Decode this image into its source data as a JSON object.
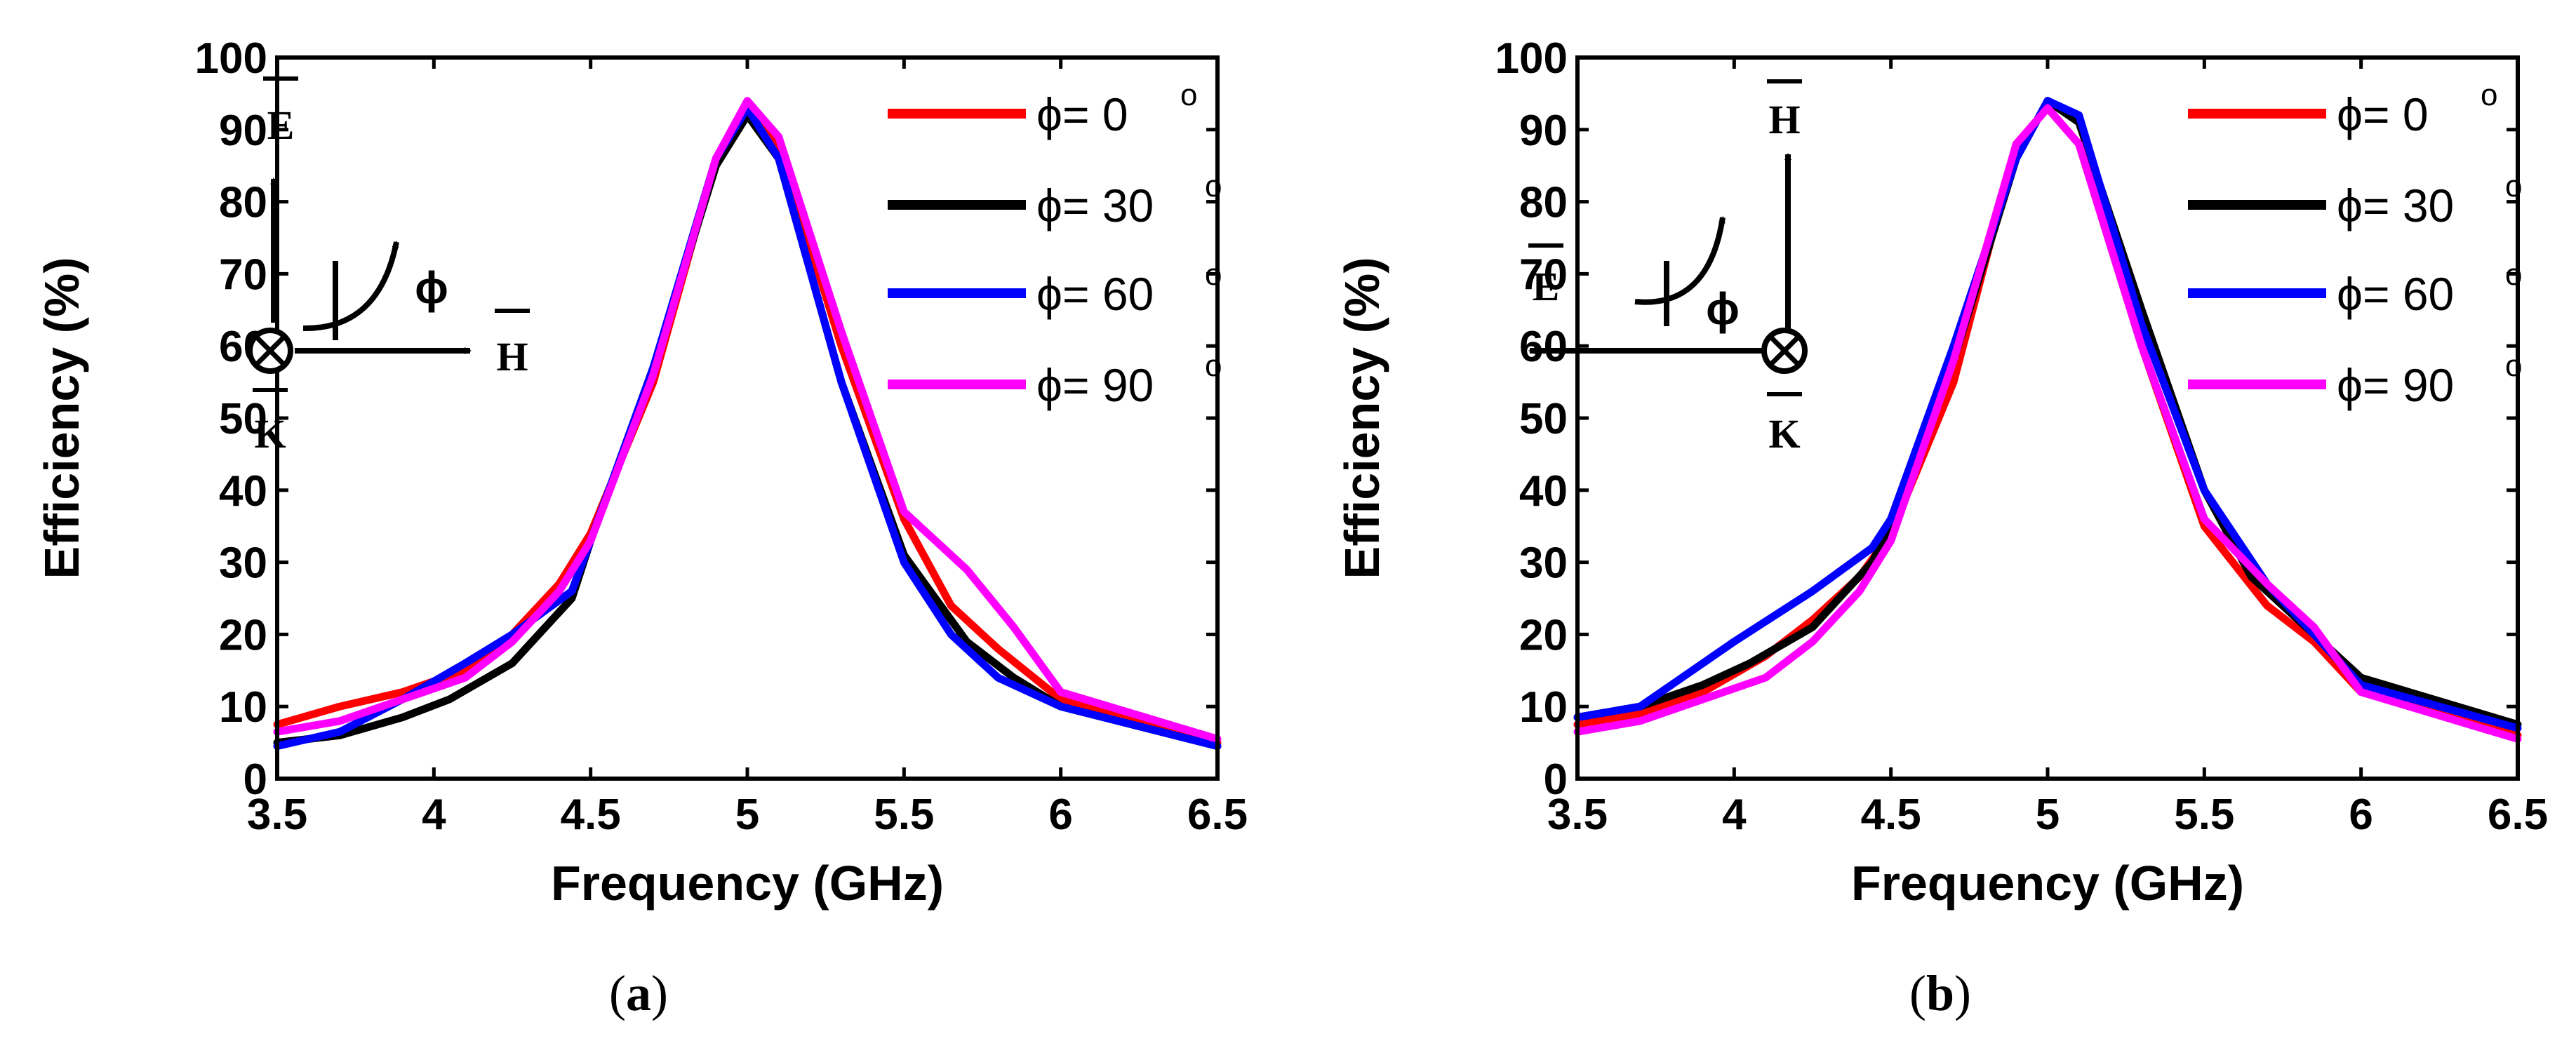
{
  "chart_data": [
    {
      "type": "line",
      "panel_label": "a",
      "xlabel": "Frequency (GHz)",
      "ylabel": "Efficiency (%)",
      "xlim": [
        3.5,
        6.5
      ],
      "ylim": [
        0,
        100
      ],
      "xticks": [
        "3.5",
        "4",
        "4.5",
        "5",
        "5.5",
        "6",
        "6.5"
      ],
      "yticks": [
        "0",
        "10",
        "20",
        "30",
        "40",
        "50",
        "60",
        "70",
        "80",
        "90",
        "100"
      ],
      "legend_position": "top-right",
      "series": [
        {
          "name": "ϕ= 0",
          "color": "#ff0000",
          "x": [
            3.5,
            3.7,
            3.9,
            4.1,
            4.25,
            4.4,
            4.5,
            4.7,
            4.9,
            5.0,
            5.1,
            5.3,
            5.5,
            5.65,
            5.8,
            6.0,
            6.5
          ],
          "y": [
            7.5,
            10,
            12,
            15,
            20,
            27,
            34,
            55,
            86,
            93,
            88,
            60,
            36,
            24,
            18,
            11,
            5
          ]
        },
        {
          "name": "ϕ= 30",
          "color": "#000000",
          "x": [
            3.5,
            3.7,
            3.9,
            4.05,
            4.25,
            4.44,
            4.5,
            4.7,
            4.9,
            5.0,
            5.1,
            5.3,
            5.5,
            5.7,
            5.85,
            6.0,
            6.5
          ],
          "y": [
            5,
            6,
            8.5,
            11,
            16,
            25,
            33,
            57,
            85,
            92,
            86,
            55,
            31,
            19,
            14,
            10,
            4.5
          ]
        },
        {
          "name": "ϕ= 60",
          "color": "#0000ff",
          "x": [
            3.5,
            3.7,
            3.9,
            4.1,
            4.25,
            4.44,
            4.5,
            4.7,
            4.9,
            5.0,
            5.1,
            5.3,
            5.5,
            5.65,
            5.8,
            6.0,
            6.5
          ],
          "y": [
            4.5,
            6.5,
            11,
            16,
            20,
            26,
            33,
            57,
            86,
            93,
            86,
            55,
            30,
            20,
            14,
            10,
            4.5
          ]
        },
        {
          "name": "ϕ= 90",
          "color": "#ff00ff",
          "x": [
            3.5,
            3.7,
            3.9,
            4.1,
            4.25,
            4.4,
            4.5,
            4.7,
            4.9,
            5.0,
            5.1,
            5.3,
            5.5,
            5.7,
            5.85,
            6.0,
            6.5
          ],
          "y": [
            6.5,
            8,
            11,
            14,
            19,
            26,
            33,
            56,
            86,
            94,
            89,
            62,
            37,
            29,
            21,
            12,
            5.5
          ]
        }
      ]
    },
    {
      "type": "line",
      "panel_label": "b",
      "xlabel": "Frequency (GHz)",
      "ylabel": "Efficiency (%)",
      "xlim": [
        3.5,
        6.5
      ],
      "ylim": [
        0,
        100
      ],
      "xticks": [
        "3.5",
        "4",
        "4.5",
        "5",
        "5.5",
        "6",
        "6.5"
      ],
      "yticks": [
        "0",
        "10",
        "20",
        "30",
        "40",
        "50",
        "60",
        "70",
        "80",
        "90",
        "100"
      ],
      "legend_position": "top-right",
      "series": [
        {
          "name": "ϕ= 0",
          "color": "#ff0000",
          "x": [
            3.5,
            3.7,
            3.9,
            4.1,
            4.25,
            4.4,
            4.5,
            4.7,
            4.9,
            5.0,
            5.1,
            5.3,
            5.5,
            5.7,
            5.85,
            6.0,
            6.5
          ],
          "y": [
            7.5,
            9,
            12,
            17,
            22,
            28,
            34,
            55,
            88,
            93,
            88,
            60,
            35,
            24,
            19,
            12,
            6
          ]
        },
        {
          "name": "ϕ= 30",
          "color": "#000000",
          "x": [
            3.5,
            3.7,
            3.9,
            4.05,
            4.25,
            4.44,
            4.5,
            4.7,
            4.9,
            5.0,
            5.1,
            5.3,
            5.5,
            5.65,
            5.85,
            6.0,
            6.5
          ],
          "y": [
            8.5,
            10,
            13,
            16,
            21,
            30,
            35,
            58,
            86,
            94,
            91,
            65,
            40,
            28,
            20,
            14,
            7.5
          ]
        },
        {
          "name": "ϕ= 60",
          "color": "#0000ff",
          "x": [
            3.5,
            3.7,
            4.0,
            4.25,
            4.44,
            4.5,
            4.7,
            4.9,
            5.0,
            5.1,
            5.3,
            5.5,
            5.7,
            5.85,
            6.0,
            6.5
          ],
          "y": [
            8.5,
            10,
            19,
            26,
            32,
            36,
            60,
            86,
            94,
            92,
            63,
            40,
            27,
            20,
            13,
            7
          ]
        },
        {
          "name": "ϕ= 90",
          "color": "#ff00ff",
          "x": [
            3.5,
            3.7,
            3.9,
            4.1,
            4.25,
            4.4,
            4.5,
            4.7,
            4.9,
            5.0,
            5.1,
            5.3,
            5.5,
            5.7,
            5.85,
            6.0,
            6.5
          ],
          "y": [
            6.5,
            8,
            11,
            14,
            19,
            26,
            33,
            58,
            88,
            93,
            88,
            60,
            36,
            27,
            21,
            12,
            5.5
          ]
        }
      ]
    }
  ],
  "legend": {
    "entries": [
      {
        "label": "ϕ= 0",
        "sup": "o"
      },
      {
        "label": "ϕ= 30",
        "sup": "o"
      },
      {
        "label": "ϕ= 60",
        "sup": "o"
      },
      {
        "label": "ϕ= 90",
        "sup": "o"
      }
    ]
  },
  "inset": {
    "a": {
      "e": "E",
      "h": "H",
      "k": "K",
      "phi": "ϕ"
    },
    "b": {
      "e": "E",
      "h": "H",
      "k": "K",
      "phi": "ϕ"
    }
  },
  "captions": {
    "a": {
      "open": "(",
      "label": "a",
      "close": ")"
    },
    "b": {
      "open": "(",
      "label": "b",
      "close": ")"
    }
  }
}
